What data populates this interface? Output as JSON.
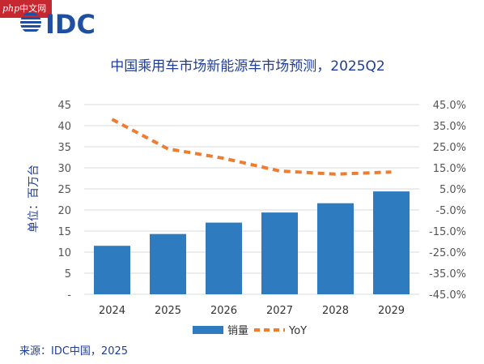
{
  "watermark": {
    "php": "php",
    "site": "中文网"
  },
  "logo": {
    "text": "IDC"
  },
  "source": "来源：IDC中国，2025",
  "colors": {
    "bar": "#2e7bbf",
    "line": "#ed7d31",
    "title": "#1f3d99",
    "brand": "#1e4fa1",
    "watermark": "#c7272e"
  },
  "chart_data": {
    "type": "bar",
    "title": "中国乘用车市场新能源车市场预测，2025Q2",
    "xlabel": "",
    "ylabel": "单位：百万台",
    "categories": [
      "2024",
      "2025",
      "2026",
      "2027",
      "2028",
      "2029"
    ],
    "series": [
      {
        "name": "销量",
        "type": "bar",
        "axis": "left",
        "values": [
          11.5,
          14.3,
          17.0,
          19.4,
          21.6,
          24.4
        ]
      },
      {
        "name": "YoY",
        "type": "line",
        "style": "dashed",
        "axis": "right",
        "values": [
          38.0,
          24.0,
          19.5,
          13.5,
          12.0,
          13.0
        ]
      }
    ],
    "ylim": [
      0,
      45
    ],
    "yticks": [
      "-",
      "5",
      "10",
      "15",
      "20",
      "25",
      "30",
      "35",
      "40",
      "45"
    ],
    "y2lim": [
      -45,
      45
    ],
    "y2ticks": [
      "-45.0%",
      "-35.0%",
      "-25.0%",
      "-15.0%",
      "-5.0%",
      "5.0%",
      "15.0%",
      "25.0%",
      "35.0%",
      "45.0%"
    ],
    "grid": true,
    "legend": "bottom"
  }
}
